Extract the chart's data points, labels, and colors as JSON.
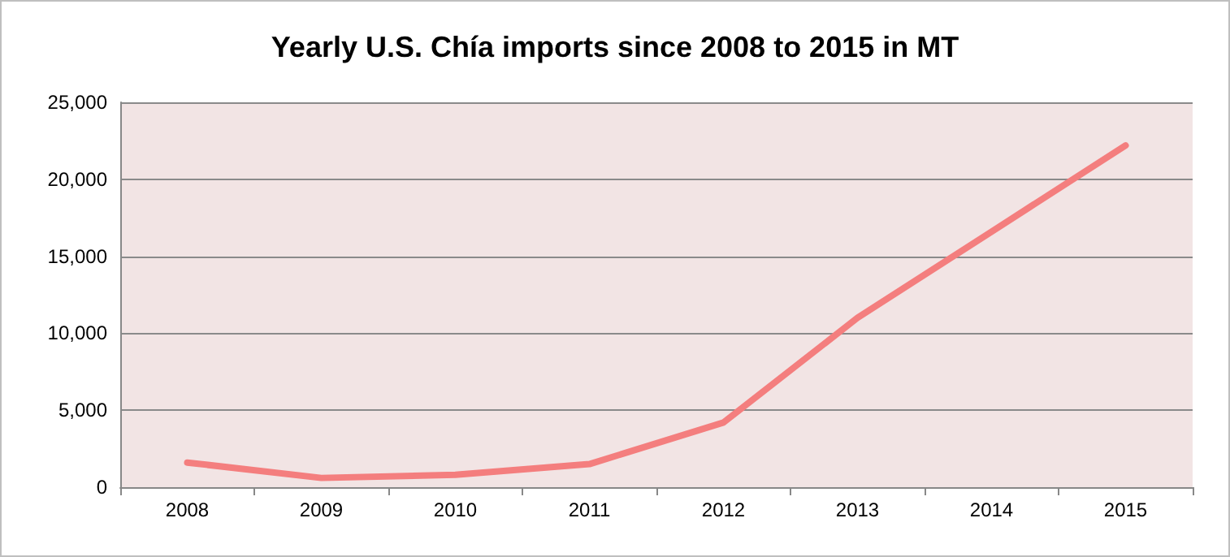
{
  "chart_data": {
    "type": "line",
    "title": "Yearly U.S. Chía imports since 2008 to 2015 in MT",
    "categories": [
      "2008",
      "2009",
      "2010",
      "2011",
      "2012",
      "2013",
      "2014",
      "2015"
    ],
    "series": [
      {
        "color": "#f47e7e",
        "values": [
          1600,
          600,
          800,
          1500,
          4200,
          11000,
          16600,
          22200
        ]
      }
    ],
    "ylim": [
      0,
      25000
    ],
    "yticks": [
      0,
      {
        "value": 5000,
        "label": "5,000"
      },
      {
        "value": 10000,
        "label": "10,000"
      },
      {
        "value": 15000,
        "label": "15,000"
      },
      {
        "value": 20000,
        "label": "20,000"
      },
      {
        "value": 25000,
        "label": "25,000"
      }
    ],
    "grid": "y",
    "marker": "none",
    "line_style": "solid"
  }
}
